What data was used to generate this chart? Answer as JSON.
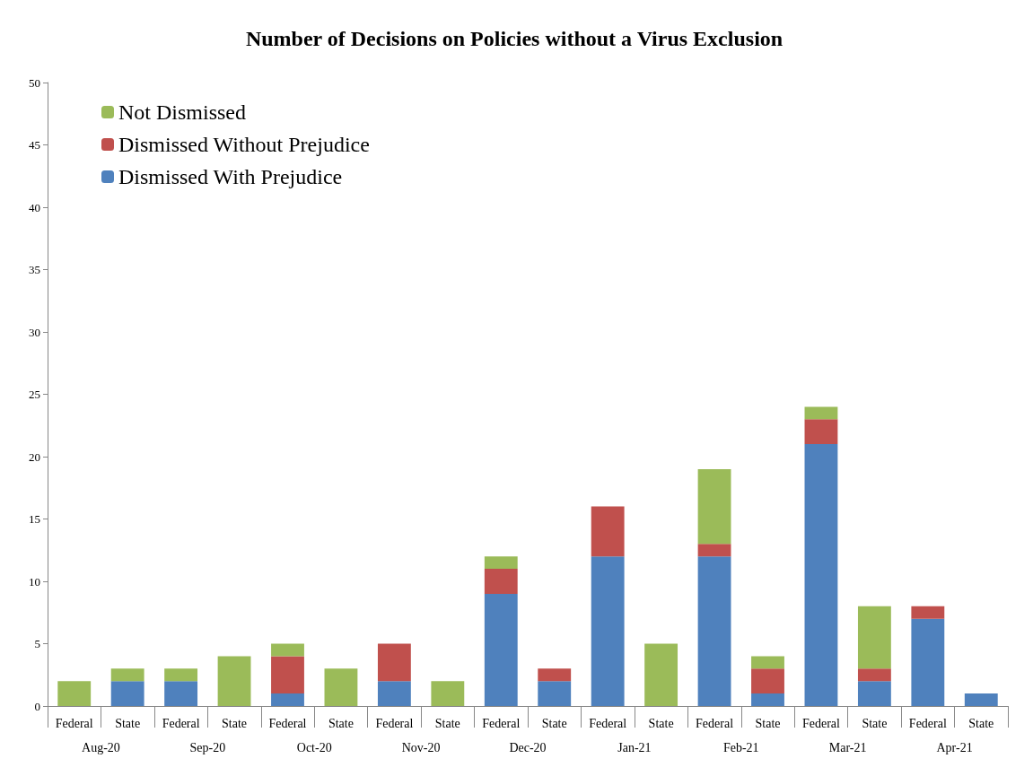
{
  "chart_data": {
    "type": "bar",
    "title": "Number of Decisions on Policies without a Virus Exclusion",
    "categories": [
      "Federal",
      "State",
      "Federal",
      "State",
      "Federal",
      "State",
      "Federal",
      "State",
      "Federal",
      "State",
      "Federal",
      "State",
      "Federal",
      "State",
      "Federal",
      "State",
      "Federal",
      "State"
    ],
    "annotations": [
      "Aug-20",
      "Sep-20",
      "Oct-20",
      "Nov-20",
      "Dec-20",
      "Jan-21",
      "Feb-21",
      "Mar-21",
      "Apr-21"
    ],
    "stacked": true,
    "series": [
      {
        "name": "Dismissed With Prejudice",
        "color": "#4f81bd",
        "values": [
          0,
          2,
          2,
          0,
          1,
          0,
          2,
          0,
          9,
          2,
          12,
          0,
          12,
          1,
          21,
          2,
          7,
          1
        ]
      },
      {
        "name": "Dismissed Without Prejudice",
        "color": "#c0504d",
        "values": [
          0,
          0,
          0,
          0,
          3,
          0,
          3,
          0,
          2,
          1,
          4,
          0,
          1,
          2,
          2,
          1,
          1,
          0
        ]
      },
      {
        "name": "Not Dismissed",
        "color": "#9bbb59",
        "values": [
          2,
          1,
          1,
          4,
          1,
          3,
          0,
          2,
          1,
          0,
          0,
          5,
          6,
          1,
          1,
          5,
          0,
          0
        ]
      }
    ],
    "ylim": [
      0,
      50
    ],
    "yticks": [
      0,
      5,
      10,
      15,
      20,
      25,
      30,
      35,
      40,
      45,
      50
    ],
    "grid": false,
    "legend": "top left"
  }
}
